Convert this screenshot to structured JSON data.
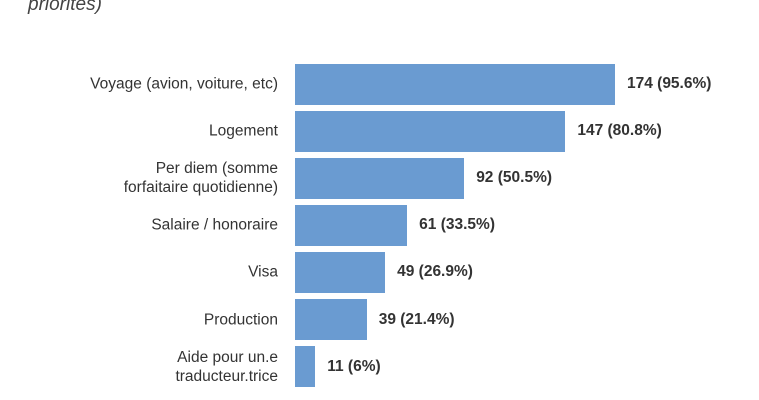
{
  "chart_data": {
    "type": "bar",
    "orientation": "horizontal",
    "title": "priorités)",
    "categories": [
      "Voyage (avion, voiture, etc)",
      "Logement",
      "Per diem (somme\nforfaitaire quotidienne)",
      "Salaire / honoraire",
      "Visa",
      "Production",
      "Aide pour un.e\ntraducteur.trice"
    ],
    "values": [
      174,
      147,
      92,
      61,
      49,
      39,
      11
    ],
    "value_labels": [
      "174 (95.6%)",
      "147 (80.8%)",
      "92 (50.5%)",
      "61 (33.5%)",
      "49 (26.9%)",
      "39 (21.4%)",
      "11 (6%)"
    ],
    "color": "#6a9bd1"
  }
}
